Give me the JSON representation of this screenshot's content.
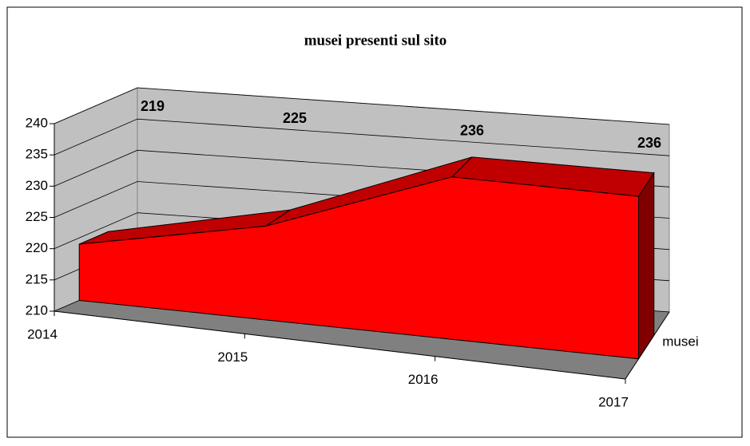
{
  "chart_data": {
    "type": "area3d",
    "title": "musei presenti sul sito",
    "categories": [
      "2014",
      "2015",
      "2016",
      "2017"
    ],
    "series": [
      {
        "name": "musei",
        "color": "#ff0000",
        "values": [
          219,
          225,
          236,
          236
        ]
      }
    ],
    "ylim": [
      210,
      240
    ],
    "yticks": [
      210,
      215,
      220,
      225,
      230,
      235,
      240
    ],
    "grid": true
  }
}
